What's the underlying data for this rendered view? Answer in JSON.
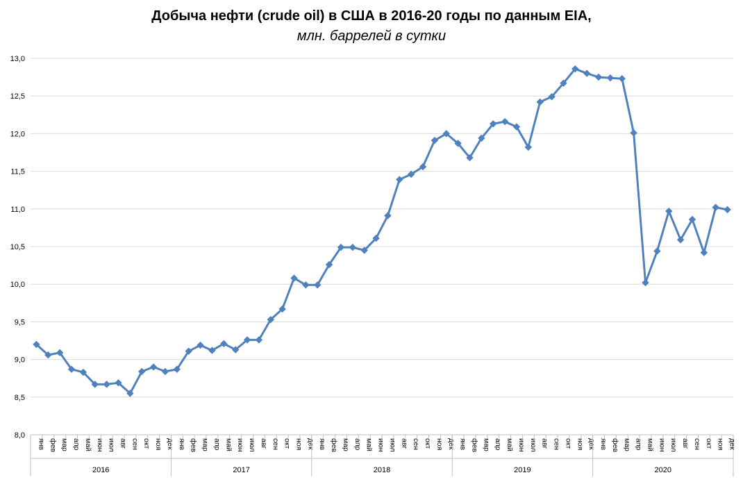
{
  "chart_data": {
    "type": "line",
    "title": "Добыча нефти (crude oil) в США в 2016-20 годы по данным EIA,",
    "subtitle": "млн. баррелей в сутки",
    "ylim": [
      8.0,
      13.0
    ],
    "ytick_labels": [
      "8,0",
      "8,5",
      "9,0",
      "9,5",
      "10,0",
      "10,5",
      "11,0",
      "11,5",
      "12,0",
      "12,5",
      "13,0"
    ],
    "grid": true,
    "months": [
      "янв",
      "фев",
      "мар",
      "апр",
      "май",
      "июн",
      "июл",
      "авг",
      "сен",
      "окт",
      "ноя",
      "дек"
    ],
    "years": [
      "2016",
      "2017",
      "2018",
      "2019",
      "2020"
    ],
    "series": [
      {
        "color": "#4F81BD",
        "values": [
          9.2,
          9.06,
          9.09,
          8.87,
          8.83,
          8.67,
          8.67,
          8.69,
          8.55,
          8.84,
          8.9,
          8.84,
          8.87,
          9.11,
          9.19,
          9.12,
          9.21,
          9.13,
          9.26,
          9.26,
          9.53,
          9.67,
          10.08,
          9.99,
          9.99,
          10.26,
          10.49,
          10.49,
          10.45,
          10.61,
          10.91,
          11.39,
          11.46,
          11.56,
          11.91,
          12.0,
          11.87,
          11.68,
          11.94,
          12.13,
          12.16,
          12.09,
          11.82,
          12.42,
          12.49,
          12.67,
          12.86,
          12.8,
          12.75,
          12.74,
          12.73,
          12.01,
          10.02,
          10.44,
          10.97,
          10.59,
          10.86,
          10.42,
          11.02,
          10.99
        ]
      }
    ]
  }
}
